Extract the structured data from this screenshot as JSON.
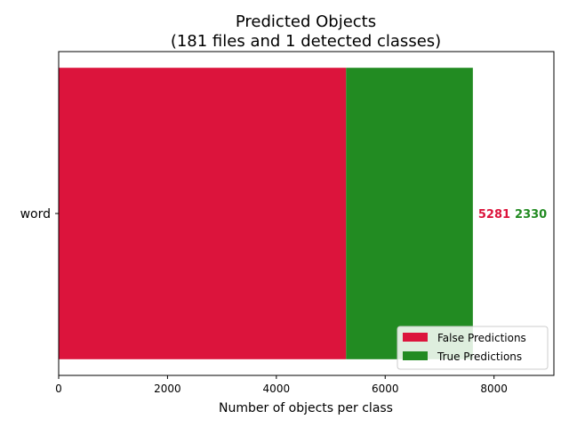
{
  "chart_data": {
    "type": "bar",
    "orientation": "horizontal",
    "stacked": true,
    "title_line1": "Predicted Objects",
    "title_line2": "(181 files and 1 detected classes)",
    "xlabel": "Number of objects per class",
    "ylabel": "",
    "categories": [
      "word"
    ],
    "series": [
      {
        "name": "False Predictions",
        "values": [
          5281
        ],
        "color": "#dc143c"
      },
      {
        "name": "True Predictions",
        "values": [
          2330
        ],
        "color": "#228b22"
      }
    ],
    "xlim": [
      0,
      9100
    ],
    "x_ticks": [
      0,
      2000,
      4000,
      6000,
      8000
    ],
    "data_labels": [
      "5281",
      "2330"
    ],
    "legend_position": "lower-right",
    "grid": false
  }
}
